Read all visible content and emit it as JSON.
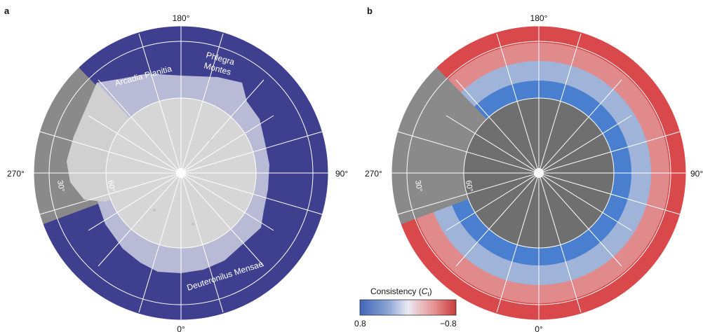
{
  "panels": [
    {
      "letter": "a",
      "angle_labels": {
        "top": "180°",
        "left": "270°",
        "right": "90°",
        "bottom": "0°"
      },
      "lat_labels": [
        "30°",
        "60°"
      ],
      "regions": [
        "Arcadia Planitia",
        "Phlegra",
        "Montes",
        "Deuteronilus Mensae"
      ],
      "colors": {
        "outer": "#3f3f8f",
        "mid": "#b9bbd6",
        "inner": "#d6d6d6",
        "terrain": "#8a8a8a"
      }
    },
    {
      "letter": "b",
      "angle_labels": {
        "top": "180°",
        "left": "270°",
        "right": "90°",
        "bottom": "0°"
      },
      "lat_labels": [
        "30°",
        "60°"
      ],
      "colors": {
        "outer": "#d9484a",
        "ring_blue": "#4a7fcf",
        "light_blue": "#9fb4d8",
        "inner": "#6f6f6f",
        "terrain": "#8a8a8a"
      }
    }
  ],
  "colorbar": {
    "title": "Consistency (",
    "symbol": "C",
    "subscript": "I",
    "close": ")",
    "min_label": "0.8",
    "max_label": "−0.8",
    "gradient": [
      "#3f66b8",
      "#8fa6d8",
      "#e9e9f2",
      "#e89a9a",
      "#c93a3a"
    ]
  }
}
